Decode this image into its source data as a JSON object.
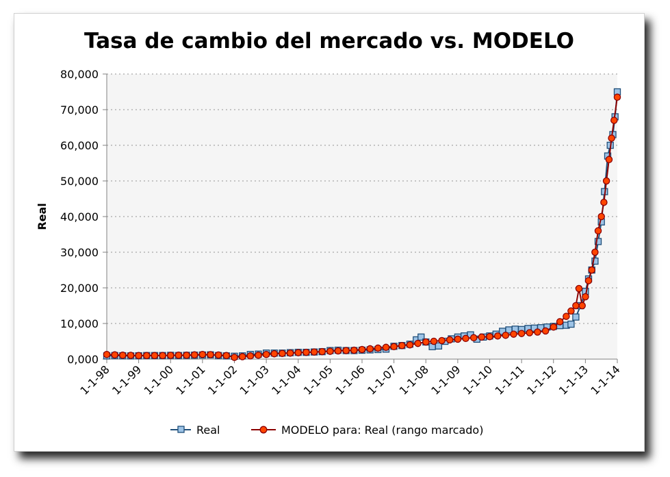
{
  "chart_data": {
    "type": "line",
    "title": "Tasa de cambio del mercado vs. MODELO",
    "xlabel": "",
    "ylabel": "Real",
    "ylim": [
      0,
      80000
    ],
    "yticks": [
      {
        "value": 0,
        "label": "0,000"
      },
      {
        "value": 10000,
        "label": "10,000"
      },
      {
        "value": 20000,
        "label": "20,000"
      },
      {
        "value": 30000,
        "label": "30,000"
      },
      {
        "value": 40000,
        "label": "40,000"
      },
      {
        "value": 50000,
        "label": "50,000"
      },
      {
        "value": 60000,
        "label": "60,000"
      },
      {
        "value": 70000,
        "label": "70,000"
      },
      {
        "value": 80000,
        "label": "80,000"
      }
    ],
    "xlim": [
      1998,
      2014
    ],
    "xticks": [
      {
        "value": 1998,
        "label": "1-1-98"
      },
      {
        "value": 1999,
        "label": "1-1-99"
      },
      {
        "value": 2000,
        "label": "1-1-00"
      },
      {
        "value": 2001,
        "label": "1-1-01"
      },
      {
        "value": 2002,
        "label": "1-1-02"
      },
      {
        "value": 2003,
        "label": "1-1-03"
      },
      {
        "value": 2004,
        "label": "1-1-04"
      },
      {
        "value": 2005,
        "label": "1-1-05"
      },
      {
        "value": 2006,
        "label": "1-1-06"
      },
      {
        "value": 2007,
        "label": "1-1-07"
      },
      {
        "value": 2008,
        "label": "1-1-08"
      },
      {
        "value": 2009,
        "label": "1-1-09"
      },
      {
        "value": 2010,
        "label": "1-1-10"
      },
      {
        "value": 2011,
        "label": "1-1-11"
      },
      {
        "value": 2012,
        "label": "1-1-12"
      },
      {
        "value": 2013,
        "label": "1-1-13"
      },
      {
        "value": 2014,
        "label": "1-1-14"
      }
    ],
    "grid": "horizontal-dotted",
    "legend_position": "bottom",
    "colors": {
      "real_line": "#1f4e79",
      "real_marker_fill": "#9dc3e6",
      "modelo_line": "#8b0000",
      "modelo_marker_fill": "#ff4500",
      "plot_bg": "#f5f5f5",
      "grid": "#b0b0b0"
    },
    "series": [
      {
        "name": "Real",
        "marker": "square",
        "x": [
          1998.0,
          1998.25,
          1998.5,
          1998.75,
          1999.0,
          1999.25,
          1999.5,
          1999.75,
          2000.0,
          2000.25,
          2000.5,
          2000.75,
          2001.0,
          2001.25,
          2001.5,
          2001.75,
          2002.0,
          2002.25,
          2002.5,
          2002.75,
          2003.0,
          2003.25,
          2003.5,
          2003.75,
          2004.0,
          2004.25,
          2004.5,
          2004.75,
          2005.0,
          2005.25,
          2005.5,
          2005.75,
          2006.0,
          2006.25,
          2006.5,
          2006.75,
          2007.0,
          2007.25,
          2007.5,
          2007.7,
          2007.85,
          2008.0,
          2008.2,
          2008.4,
          2008.6,
          2008.8,
          2009.0,
          2009.2,
          2009.4,
          2009.6,
          2009.8,
          2010.0,
          2010.2,
          2010.4,
          2010.6,
          2010.8,
          2011.0,
          2011.2,
          2011.4,
          2011.6,
          2011.8,
          2012.0,
          2012.2,
          2012.4,
          2012.55,
          2012.7,
          2012.85,
          2013.0,
          2013.1,
          2013.2,
          2013.3,
          2013.4,
          2013.5,
          2013.6,
          2013.7,
          2013.78,
          2013.86,
          2013.93,
          2014.0
        ],
        "values": [
          900,
          1000,
          950,
          900,
          950,
          1000,
          1000,
          1000,
          1050,
          1000,
          1050,
          1100,
          1150,
          1200,
          1000,
          900,
          800,
          900,
          1300,
          1400,
          1700,
          1700,
          1700,
          1800,
          1900,
          1900,
          2000,
          2100,
          2400,
          2500,
          2400,
          2400,
          2500,
          2600,
          2700,
          2800,
          3600,
          3800,
          4200,
          5400,
          6200,
          4800,
          3500,
          3700,
          5000,
          5700,
          6200,
          6500,
          6800,
          5600,
          6200,
          6500,
          7000,
          7800,
          8200,
          8400,
          8300,
          8600,
          8700,
          8800,
          9000,
          9200,
          9400,
          9500,
          9800,
          11800,
          15000,
          19000,
          22500,
          25000,
          27500,
          33000,
          38500,
          47000,
          57000,
          60000,
          63000,
          68000,
          75000
        ]
      },
      {
        "name": "MODELO para: Real (rango marcado)",
        "marker": "circle",
        "x": [
          1998.0,
          1998.25,
          1998.5,
          1998.75,
          1999.0,
          1999.25,
          1999.5,
          1999.75,
          2000.0,
          2000.25,
          2000.5,
          2000.75,
          2001.0,
          2001.25,
          2001.5,
          2001.75,
          2002.0,
          2002.25,
          2002.5,
          2002.75,
          2003.0,
          2003.25,
          2003.5,
          2003.75,
          2004.0,
          2004.25,
          2004.5,
          2004.75,
          2005.0,
          2005.25,
          2005.5,
          2005.75,
          2006.0,
          2006.25,
          2006.5,
          2006.75,
          2007.0,
          2007.25,
          2007.5,
          2007.75,
          2008.0,
          2008.25,
          2008.5,
          2008.75,
          2009.0,
          2009.25,
          2009.5,
          2009.75,
          2010.0,
          2010.25,
          2010.5,
          2010.75,
          2011.0,
          2011.25,
          2011.5,
          2011.75,
          2012.0,
          2012.2,
          2012.4,
          2012.55,
          2012.7,
          2012.8,
          2012.9,
          2013.0,
          2013.1,
          2013.2,
          2013.3,
          2013.4,
          2013.5,
          2013.58,
          2013.66,
          2013.74,
          2013.82,
          2013.9,
          2014.0
        ],
        "values": [
          1300,
          1200,
          1100,
          1050,
          1000,
          1000,
          1000,
          1000,
          1050,
          1100,
          1100,
          1200,
          1300,
          1250,
          1150,
          1000,
          500,
          700,
          900,
          1100,
          1300,
          1500,
          1600,
          1700,
          1800,
          1900,
          2000,
          2100,
          2200,
          2300,
          2400,
          2500,
          2700,
          2900,
          3100,
          3300,
          3500,
          3800,
          4000,
          4400,
          4800,
          5000,
          5200,
          5400,
          5600,
          5800,
          6000,
          6200,
          6300,
          6500,
          6700,
          7000,
          7200,
          7400,
          7600,
          7900,
          9000,
          10500,
          12000,
          13500,
          15000,
          19800,
          15000,
          17500,
          22000,
          25000,
          30000,
          36000,
          40000,
          44000,
          50000,
          56000,
          62000,
          67000,
          73500
        ]
      }
    ]
  }
}
